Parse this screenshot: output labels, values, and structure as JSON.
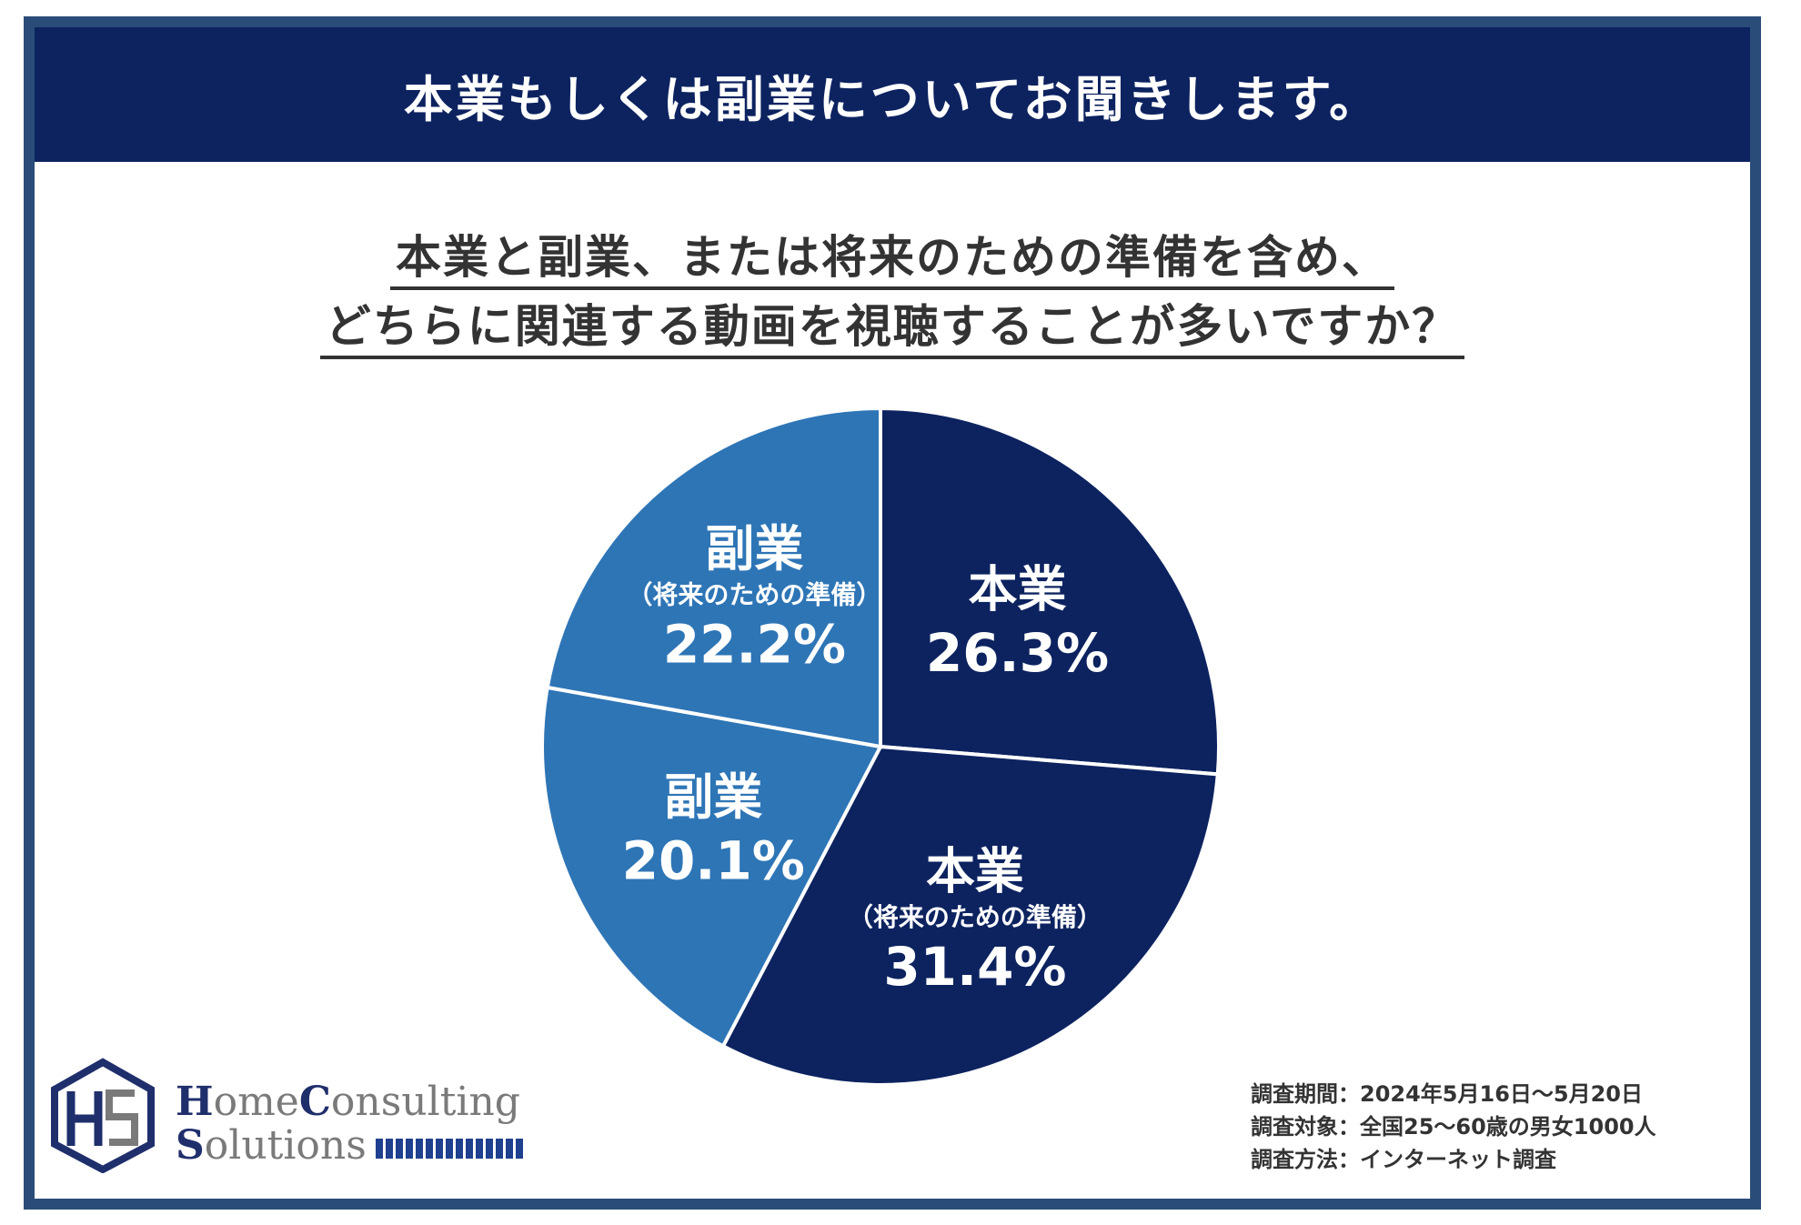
{
  "header": {
    "title": "本業もしくは副業についてお聞きします。"
  },
  "question": {
    "line1": "本業と副業、または将来のための準備を含め、",
    "line2": "どちらに関連する動画を視聴することが多いですか？"
  },
  "chart_data": {
    "type": "pie",
    "slices": [
      {
        "name": "本業",
        "sublabel": "",
        "value": 26.3,
        "value_label": "26.3%",
        "color": "#0d2360"
      },
      {
        "name": "本業",
        "sublabel": "（将来のための準備）",
        "value": 31.4,
        "value_label": "31.4%",
        "color": "#0d2360"
      },
      {
        "name": "副業",
        "sublabel": "",
        "value": 20.1,
        "value_label": "20.1%",
        "color": "#2e75b6"
      },
      {
        "name": "副業",
        "sublabel": "（将来のための準備）",
        "value": 22.2,
        "value_label": "22.2%",
        "color": "#2e75b6"
      }
    ]
  },
  "logo": {
    "home": "H",
    "home_rest": "ome",
    "consulting": "C",
    "consulting_rest": "onsulting",
    "solutions": "S",
    "solutions_rest": "olutions"
  },
  "survey": [
    {
      "label": "調査期間：",
      "value": "2024年5月16日～5月20日"
    },
    {
      "label": "調査対象：",
      "value": "全国25～60歳の男女1000人"
    },
    {
      "label": "調査方法：",
      "value": "インターネット調査"
    }
  ]
}
